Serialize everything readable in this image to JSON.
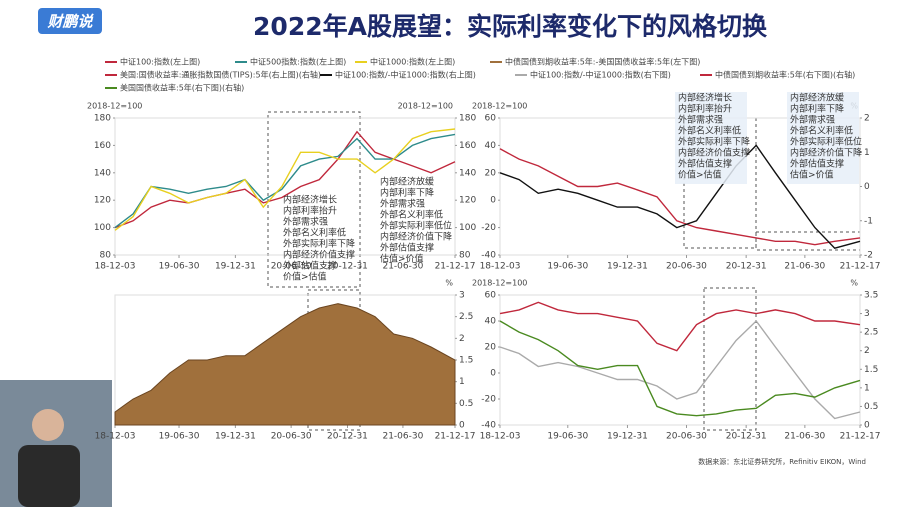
{
  "title": "2022年A股展望：实际利率变化下的风格切换",
  "logo": "财鹏说",
  "source": "数据来源：东北证券研究所，Refinitiv EIKON，Wind",
  "chart_data": [
    {
      "type": "line",
      "ylabel": "2018-12=100",
      "y2label": "2018-12=100",
      "x": [
        "18-12-03",
        "19-01-31",
        "19-03-31",
        "19-05-31",
        "19-07-31",
        "19-09-30",
        "19-11-30",
        "20-01-31",
        "20-03-31",
        "20-05-31",
        "20-07-31",
        "20-09-30",
        "20-11-30",
        "21-01-31",
        "21-03-31",
        "21-05-31",
        "21-07-31",
        "21-09-30",
        "21-12-17"
      ],
      "xlim": [
        "18-12-03",
        "21-12-17"
      ],
      "xticks": [
        "18-12-03",
        "19-06-30",
        "19-12-31",
        "20-06-30",
        "20-12-31",
        "21-06-30",
        "21-12-17"
      ],
      "ylim": [
        80,
        180
      ],
      "yticks": [
        80,
        100,
        120,
        140,
        160,
        180
      ],
      "y2lim": [
        80,
        180
      ],
      "y2ticks": [
        80,
        100,
        120,
        140,
        160,
        180
      ],
      "series": [
        {
          "name": "中证100:指数(左上图)",
          "color": "#c0283c",
          "values": [
            100,
            105,
            115,
            120,
            118,
            122,
            125,
            128,
            118,
            122,
            130,
            135,
            150,
            170,
            155,
            150,
            145,
            140,
            148
          ]
        },
        {
          "name": "中证500指数:指数(左上图)",
          "color": "#2e8b8b",
          "values": [
            100,
            110,
            130,
            128,
            125,
            128,
            130,
            135,
            120,
            128,
            145,
            150,
            152,
            165,
            150,
            150,
            160,
            165,
            168
          ]
        },
        {
          "name": "中证1000:指数(左上图)",
          "color": "#e8d020",
          "values": [
            98,
            108,
            130,
            125,
            118,
            122,
            125,
            135,
            115,
            130,
            155,
            155,
            150,
            150,
            140,
            150,
            165,
            170,
            172
          ]
        }
      ],
      "annotations": [
        [
          "内部经济增长",
          "内部利率抬升",
          "外部需求强",
          "外部名义利率低",
          "外部实际利率下降",
          "内部经济价值支撑",
          "外部估值支撑",
          "价值>估值"
        ],
        [
          "内部经济放缓",
          "内部利率下降",
          "外部需求强",
          "外部名义利率低",
          "外部实际利率低位",
          "内部经济价值下降",
          "外部估值支撑",
          "估值>价值"
        ]
      ]
    },
    {
      "type": "line",
      "ylabel": "2018-12=100",
      "y2label": "%",
      "x": [
        "18-12-03",
        "19-01-31",
        "19-03-31",
        "19-05-31",
        "19-07-31",
        "19-09-30",
        "19-11-30",
        "20-01-31",
        "20-03-31",
        "20-05-31",
        "20-07-31",
        "20-09-30",
        "20-11-30",
        "21-01-31",
        "21-03-31",
        "21-05-31",
        "21-07-31",
        "21-09-30",
        "21-12-17"
      ],
      "xlim": [
        "18-12-03",
        "21-12-17"
      ],
      "xticks": [
        "18-12-03",
        "19-06-30",
        "19-12-31",
        "20-06-30",
        "20-12-31",
        "21-06-30",
        "21-12-17"
      ],
      "ylim": [
        -40,
        60
      ],
      "yticks": [
        -40,
        -20,
        0,
        20,
        40,
        60
      ],
      "y2lim": [
        -2,
        2
      ],
      "y2ticks": [
        -2,
        -1,
        0,
        1,
        2
      ],
      "series": [
        {
          "name": "美国:国债收益率:通胀指数国债(TIPS):5年(右上图)(右轴)",
          "color": "#c0283c",
          "axis": "y2",
          "values": [
            1.1,
            0.8,
            0.6,
            0.3,
            0.0,
            0.0,
            0.1,
            -0.1,
            -0.3,
            -1.0,
            -1.2,
            -1.3,
            -1.4,
            -1.5,
            -1.6,
            -1.6,
            -1.7,
            -1.6,
            -1.5
          ]
        },
        {
          "name": "中证100:指数/-中证1000:指数(右上图)",
          "color": "#111111",
          "values": [
            20,
            15,
            5,
            8,
            5,
            0,
            -5,
            -5,
            -10,
            -20,
            -15,
            5,
            25,
            40,
            20,
            0,
            -20,
            -35,
            -30
          ]
        }
      ],
      "annotations": [
        [
          "内部经济增长",
          "内部利率抬升",
          "外部需求强",
          "外部名义利率低",
          "外部实际利率下降",
          "内部经济价值支撑",
          "外部估值支撑",
          "价值>估值"
        ],
        [
          "内部经济放缓",
          "内部利率下降",
          "外部需求强",
          "外部名义利率低",
          "外部实际利率低位",
          "内部经济价值下降",
          "外部估值支撑",
          "估值>价值"
        ]
      ]
    },
    {
      "type": "area",
      "y2label": "%",
      "x": [
        "18-12-03",
        "19-01-31",
        "19-03-31",
        "19-05-31",
        "19-07-31",
        "19-09-30",
        "19-11-30",
        "20-01-31",
        "20-03-31",
        "20-05-31",
        "20-07-31",
        "20-09-30",
        "20-11-30",
        "21-01-31",
        "21-03-31",
        "21-05-31",
        "21-07-31",
        "21-09-30",
        "21-12-17"
      ],
      "xlim": [
        "18-12-03",
        "21-12-17"
      ],
      "xticks": [
        "18-12-03",
        "19-06-30",
        "19-12-31",
        "20-06-30",
        "20-12-31",
        "21-06-30",
        "21-12-17"
      ],
      "y2lim": [
        0,
        3
      ],
      "y2ticks": [
        0,
        0.5,
        1,
        1.5,
        2,
        2.5,
        3
      ],
      "series": [
        {
          "name": "中债国债到期收益率:5年:-美国国债收益率:5年(左下图)",
          "color": "#a0703c",
          "axis": "y2",
          "values": [
            0.3,
            0.6,
            0.8,
            1.2,
            1.5,
            1.5,
            1.6,
            1.6,
            1.9,
            2.2,
            2.5,
            2.7,
            2.8,
            2.7,
            2.5,
            2.1,
            2.0,
            1.8,
            1.5
          ]
        }
      ]
    },
    {
      "type": "line",
      "ylabel": "2018-12=100",
      "y2label": "%",
      "x": [
        "18-12-03",
        "19-01-31",
        "19-03-31",
        "19-05-31",
        "19-07-31",
        "19-09-30",
        "19-11-30",
        "20-01-31",
        "20-03-31",
        "20-05-31",
        "20-07-31",
        "20-09-30",
        "20-11-30",
        "21-01-31",
        "21-03-31",
        "21-05-31",
        "21-07-31",
        "21-09-30",
        "21-12-17"
      ],
      "xlim": [
        "18-12-03",
        "21-12-17"
      ],
      "xticks": [
        "18-12-03",
        "19-06-30",
        "19-12-31",
        "20-06-30",
        "20-12-31",
        "21-06-30",
        "21-12-17"
      ],
      "ylim": [
        -40,
        60
      ],
      "yticks": [
        -40,
        -20,
        0,
        20,
        40,
        60
      ],
      "y2lim": [
        0,
        3.5
      ],
      "y2ticks": [
        0,
        0.5,
        1,
        1.5,
        2,
        2.5,
        3,
        3.5
      ],
      "series": [
        {
          "name": "中证100:指数/-中证1000:指数(右下图)",
          "color": "#aaaaaa",
          "values": [
            20,
            15,
            5,
            8,
            5,
            0,
            -5,
            -5,
            -10,
            -20,
            -15,
            5,
            25,
            40,
            20,
            0,
            -20,
            -35,
            -30
          ]
        },
        {
          "name": "中债国债到期收益率:5年(右下图)(右轴)",
          "color": "#c0283c",
          "axis": "y2",
          "values": [
            3.0,
            3.1,
            3.3,
            3.1,
            3.0,
            3.0,
            2.9,
            2.8,
            2.2,
            2.0,
            2.7,
            3.0,
            3.1,
            3.0,
            3.1,
            3.0,
            2.8,
            2.8,
            2.7
          ]
        },
        {
          "name": "美国国债收益率:5年(右下图)(右轴)",
          "color": "#4a8a20",
          "axis": "y2",
          "values": [
            2.8,
            2.5,
            2.3,
            2.0,
            1.6,
            1.5,
            1.6,
            1.6,
            0.5,
            0.3,
            0.25,
            0.3,
            0.4,
            0.45,
            0.8,
            0.85,
            0.75,
            1.0,
            1.2
          ]
        }
      ]
    }
  ]
}
